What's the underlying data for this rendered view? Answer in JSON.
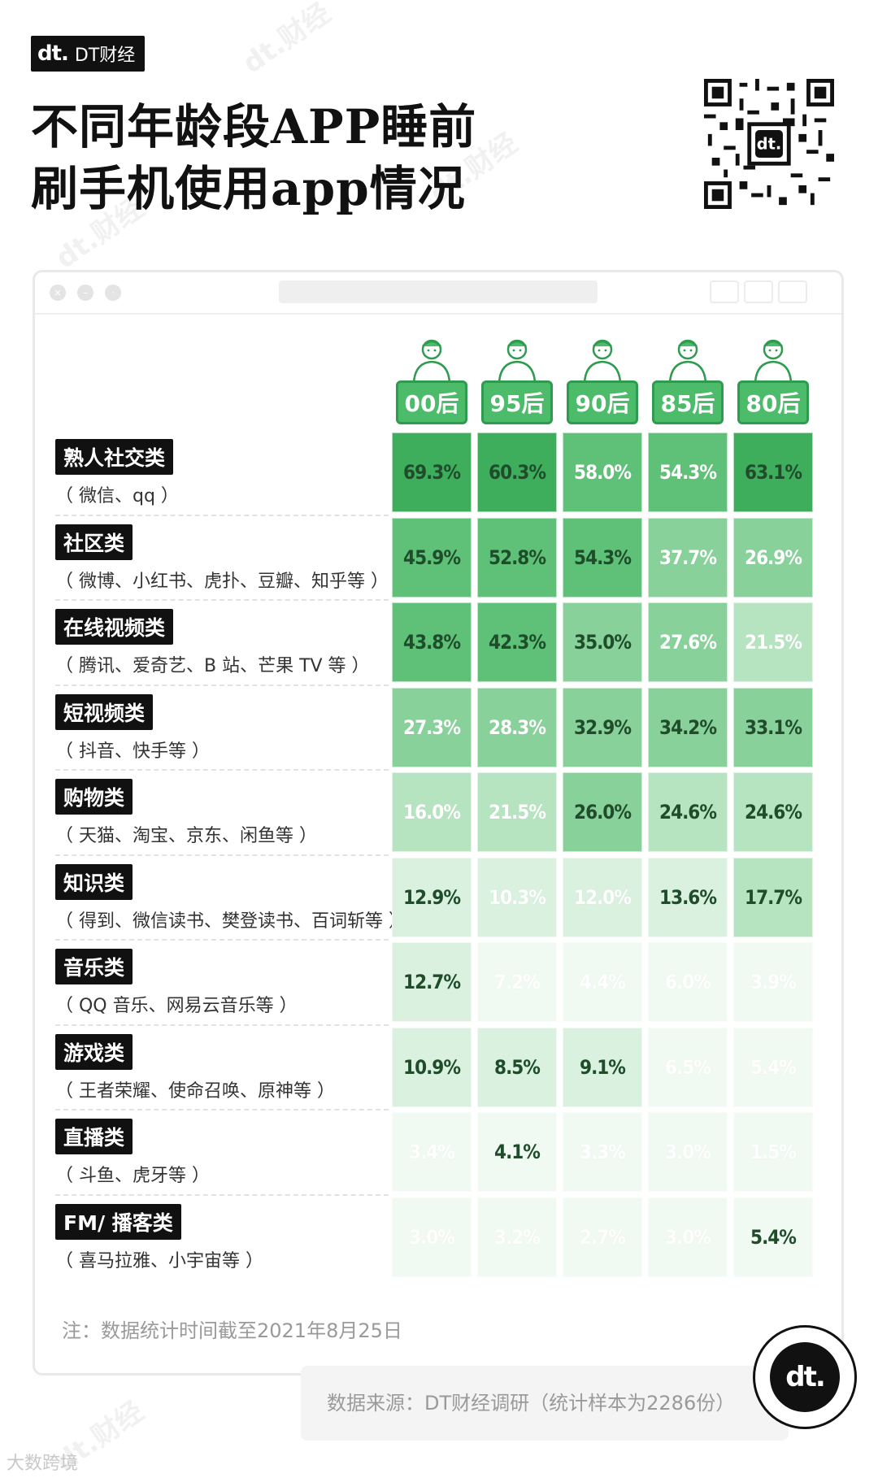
{
  "brand": {
    "logo_text": "dt.",
    "name": "DT财经"
  },
  "title_lines": [
    "不同年龄段APP睡前",
    "刷手机使用app情况"
  ],
  "watermark_text": "dt.财经",
  "chart_data": {
    "type": "heatmap",
    "columns": [
      "00后",
      "95后",
      "90后",
      "85后",
      "80后"
    ],
    "rows": [
      {
        "category": "熟人社交类",
        "examples": "（ 微信、qq ）",
        "values": [
          "69.3%",
          "60.3%",
          "58.0%",
          "54.3%",
          "63.1%"
        ]
      },
      {
        "category": "社区类",
        "examples": "（ 微博、小红书、虎扑、豆瓣、知乎等 ）",
        "values": [
          "45.9%",
          "52.8%",
          "54.3%",
          "37.7%",
          "26.9%"
        ]
      },
      {
        "category": "在线视频类",
        "examples": "（ 腾讯、爱奇艺、B 站、芒果 TV 等 ）",
        "values": [
          "43.8%",
          "42.3%",
          "35.0%",
          "27.6%",
          "21.5%"
        ]
      },
      {
        "category": "短视频类",
        "examples": "（ 抖音、快手等 ）",
        "values": [
          "27.3%",
          "28.3%",
          "32.9%",
          "34.2%",
          "33.1%"
        ]
      },
      {
        "category": "购物类",
        "examples": "（ 天猫、淘宝、京东、闲鱼等 ）",
        "values": [
          "16.0%",
          "21.5%",
          "26.0%",
          "24.6%",
          "24.6%"
        ]
      },
      {
        "category": "知识类",
        "examples": "（ 得到、微信读书、樊登读书、百词斩等 ）",
        "values": [
          "12.9%",
          "10.3%",
          "12.0%",
          "13.6%",
          "17.7%"
        ]
      },
      {
        "category": "音乐类",
        "examples": "（ QQ 音乐、网易云音乐等 ）",
        "values": [
          "12.7%",
          "7.2%",
          "4.4%",
          "6.0%",
          "3.9%"
        ]
      },
      {
        "category": "游戏类",
        "examples": "（ 王者荣耀、使命召唤、原神等 ）",
        "values": [
          "10.9%",
          "8.5%",
          "9.1%",
          "6.5%",
          "5.4%"
        ]
      },
      {
        "category": "直播类",
        "examples": "（ 斗鱼、虎牙等 ）",
        "values": [
          "3.4%",
          "4.1%",
          "3.3%",
          "3.0%",
          "1.5%"
        ]
      },
      {
        "category": "FM/ 播客类",
        "examples": "（ 喜马拉雅、小宇宙等 ）",
        "values": [
          "3.0%",
          "3.2%",
          "2.7%",
          "3.0%",
          "5.4%"
        ]
      }
    ],
    "highlight_color": "#1f4d2b",
    "plain_text_color": "#ffffff",
    "cell_palette": [
      "#f0faf2",
      "#d9f1de",
      "#b6e3c0",
      "#88d19a",
      "#5ec177",
      "#3eae5d"
    ]
  },
  "note": "注：数据统计时间截至2021年8月25日",
  "source": "数据来源：DT财经调研（统计样本为2286份）",
  "corner_logo_text": "dt.",
  "footer_watermark": "大数跨境"
}
